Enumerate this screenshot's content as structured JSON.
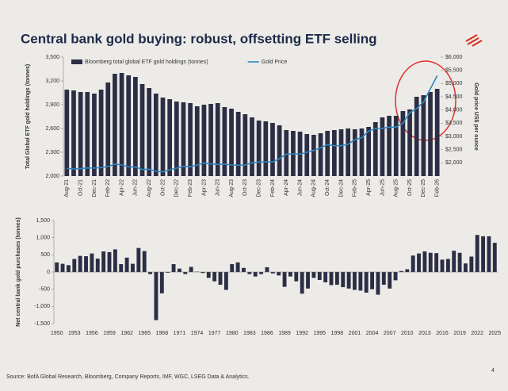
{
  "title": "Central bank gold buying: robust, offsetting ETF selling",
  "source": "Source: BofA Global Research, Bloomberg, Company Reports, IMF, WGC, LSEG Data & Analytics.",
  "page": 4,
  "chart_data": [
    {
      "type": "bar_line",
      "legend": "top",
      "ylabel": "Total Global ETF gold holdings (tonnes)",
      "y2label": "Gold price US$ per ounce",
      "categories": [
        "Aug-21",
        null,
        "Oct-21",
        null,
        "Dec-21",
        null,
        "Feb-22",
        null,
        "Apr-22",
        null,
        "Jun-22",
        null,
        "Aug-22",
        null,
        "Oct-22",
        null,
        "Dec-22",
        null,
        "Feb-23",
        null,
        "Apr-23",
        null,
        "Jun-23",
        null,
        "Aug-23",
        null,
        "Oct-23",
        null,
        "Dec-23",
        null,
        "Feb-24",
        null,
        "Apr-24",
        null,
        "Jun-24",
        null,
        "Aug-24",
        null,
        "Oct-24",
        null,
        "Dec-24",
        null,
        "Feb-25",
        null,
        "Apr-25",
        null,
        "Jun-25",
        null,
        "Aug-25",
        null,
        "Oct-25",
        null,
        "Dec-25",
        null,
        "Feb-26"
      ],
      "series": [
        {
          "name": "Bloomberg total global ETF gold holdings (tonnes)",
          "kind": "bar",
          "color": "#2c2e45",
          "values": [
            3090,
            3080,
            3060,
            3060,
            3040,
            3090,
            3180,
            3290,
            3300,
            3270,
            3250,
            3160,
            3110,
            3040,
            2990,
            2970,
            2940,
            2930,
            2920,
            2880,
            2900,
            2910,
            2920,
            2870,
            2850,
            2810,
            2780,
            2740,
            2700,
            2690,
            2670,
            2640,
            2580,
            2570,
            2560,
            2530,
            2520,
            2540,
            2570,
            2580,
            2590,
            2600,
            2590,
            2600,
            2620,
            2680,
            2740,
            2760,
            2760,
            2820,
            2840,
            3000,
            3020,
            3060,
            3100
          ]
        },
        {
          "name": "Gold Price",
          "kind": "line",
          "axis": "y2",
          "color": "#2e86c1",
          "values": [
            1790,
            1770,
            1780,
            1810,
            1800,
            1820,
            1860,
            1950,
            1920,
            1850,
            1840,
            1750,
            1760,
            1680,
            1660,
            1740,
            1800,
            1870,
            1850,
            1920,
            1990,
            1960,
            1940,
            1950,
            1920,
            1910,
            1920,
            2000,
            2030,
            2040,
            2030,
            2160,
            2330,
            2340,
            2330,
            2400,
            2470,
            2570,
            2690,
            2650,
            2650,
            2700,
            2880,
            2950,
            3200,
            3300,
            3300,
            3350,
            3350,
            3500,
            3900,
            4050,
            4300,
            4800,
            5300
          ]
        }
      ],
      "ylim": [
        2000,
        3500
      ],
      "yticks": [
        {
          "value": 2000,
          "label": "2,000"
        },
        {
          "value": 2300,
          "label": "2,300"
        },
        {
          "value": 2600,
          "label": "2,600"
        },
        {
          "value": 2900,
          "label": "2,900"
        },
        {
          "value": 3200,
          "label": "3,200"
        },
        {
          "value": 3500,
          "label": "3,500"
        }
      ],
      "y2lim": [
        1500,
        6000
      ],
      "y2ticks": [
        {
          "value": 2000,
          "label": "$2,000"
        },
        {
          "value": 2500,
          "label": "$2,500"
        },
        {
          "value": 3000,
          "label": "$3,000"
        },
        {
          "value": 3500,
          "label": "$3,500"
        },
        {
          "value": 4000,
          "label": "$4,000"
        },
        {
          "value": 4500,
          "label": "$4,500"
        },
        {
          "value": 5000,
          "label": "$5,000"
        },
        {
          "value": 5500,
          "label": "$5,500"
        },
        {
          "value": 6000,
          "label": "$6,000"
        }
      ],
      "grid": false
    },
    {
      "type": "bar",
      "ylabel": "Net central bank gold purchases (tonnes)",
      "categories": [
        "1950",
        null,
        null,
        "1953",
        null,
        null,
        "1956",
        null,
        null,
        "1959",
        null,
        null,
        "1962",
        null,
        null,
        "1965",
        null,
        null,
        "1968",
        null,
        null,
        "1971",
        null,
        null,
        "1974",
        null,
        null,
        "1977",
        null,
        null,
        "1980",
        null,
        null,
        "1983",
        null,
        null,
        "1986",
        null,
        null,
        "1989",
        null,
        null,
        "1992",
        null,
        null,
        "1995",
        null,
        null,
        "1998",
        null,
        null,
        "2001",
        null,
        null,
        "2004",
        null,
        null,
        "2007",
        null,
        null,
        "2010",
        null,
        null,
        "2013",
        null,
        null,
        "2016",
        null,
        null,
        "2019",
        null,
        null,
        "2022",
        null,
        null,
        "2025"
      ],
      "series": [
        {
          "name": null,
          "kind": "bar",
          "color": "#2c2e45",
          "values": [
            280,
            240,
            200,
            380,
            470,
            460,
            540,
            390,
            600,
            580,
            660,
            230,
            420,
            240,
            700,
            610,
            -60,
            -1400,
            -620,
            -20,
            230,
            100,
            -60,
            150,
            10,
            -30,
            -170,
            -270,
            -370,
            -520,
            230,
            280,
            120,
            -60,
            -130,
            -60,
            140,
            -40,
            -100,
            -430,
            -130,
            -270,
            -630,
            -480,
            -170,
            -230,
            -300,
            -380,
            -370,
            -440,
            -480,
            -520,
            -540,
            -600,
            -500,
            -660,
            -370,
            -480,
            -240,
            30,
            80,
            480,
            540,
            600,
            560,
            550,
            360,
            380,
            620,
            560,
            250,
            450,
            1080,
            1040,
            1040,
            850
          ]
        }
      ],
      "ylim": [
        -1500,
        1500
      ],
      "yticks": [
        {
          "value": -1500,
          "label": "-1,500"
        },
        {
          "value": -1000,
          "label": "-1,000"
        },
        -500,
        0,
        500,
        {
          "value": 1000,
          "label": "1,000"
        },
        {
          "value": 1500,
          "label": "1,500"
        }
      ],
      "grid": false
    }
  ]
}
